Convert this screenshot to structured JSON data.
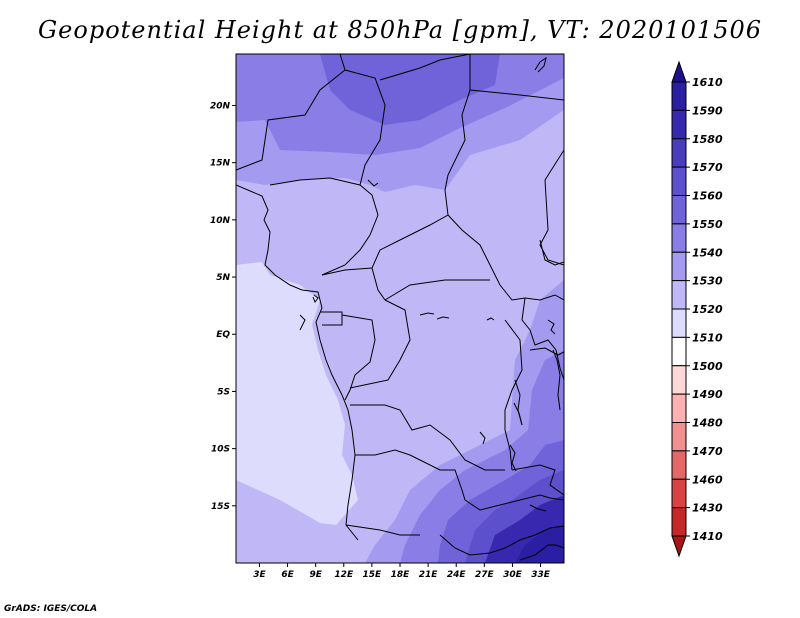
{
  "title": "Geopotential Height at 850hPa [gpm], VT: 2020101506",
  "footer": "GrADS: IGES/COLA",
  "map": {
    "lat_labels": [
      "20N",
      "15N",
      "10N",
      "5N",
      "EQ",
      "5S",
      "10S",
      "15S"
    ],
    "lat_values": [
      20,
      15,
      10,
      5,
      0,
      -5,
      -10,
      -15
    ],
    "lon_labels": [
      "3E",
      "6E",
      "9E",
      "12E",
      "15E",
      "18E",
      "21E",
      "24E",
      "27E",
      "30E",
      "33E"
    ],
    "lon_values": [
      3,
      6,
      9,
      12,
      15,
      18,
      21,
      24,
      27,
      30,
      33
    ],
    "extent": {
      "lon_min": 0.5,
      "lon_max": 35.5,
      "lat_min": -20,
      "lat_max": 24.5
    }
  },
  "colorbar": {
    "labels": [
      "1610",
      "1590",
      "1580",
      "1570",
      "1560",
      "1550",
      "1540",
      "1530",
      "1520",
      "1510",
      "1500",
      "1490",
      "1480",
      "1470",
      "1460",
      "1430",
      "1410"
    ],
    "colors": [
      "#1e0f8c",
      "#2a1ea3",
      "#3828b0",
      "#4a3cbe",
      "#5c50cc",
      "#7062d8",
      "#8a7ee6",
      "#a49af0",
      "#c0b8f6",
      "#dedcfc",
      "#ffffff",
      "#ffd8d8",
      "#ffb0b0",
      "#f29090",
      "#e46868",
      "#d84444",
      "#c62828",
      "#aa1414"
    ]
  }
}
